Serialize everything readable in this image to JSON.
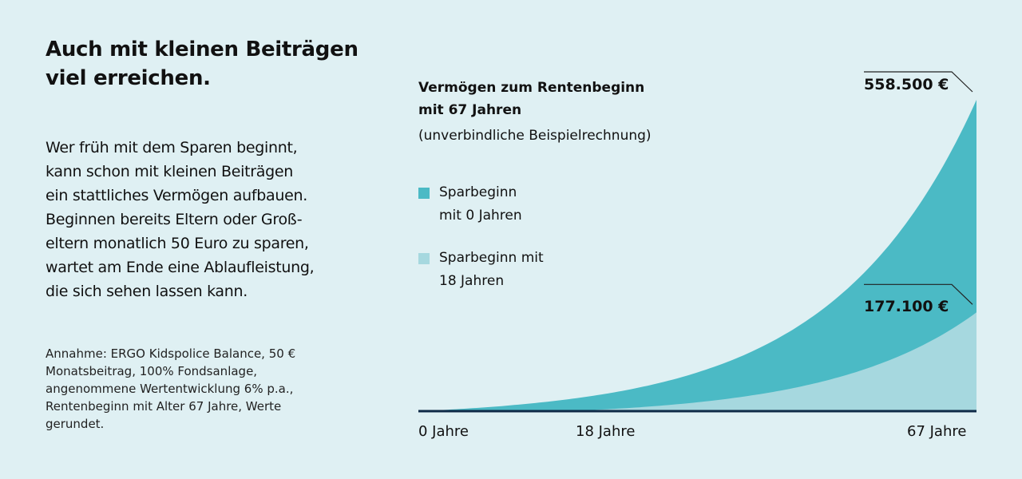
{
  "headline": "Auch mit kleinen Beiträgen viel erreichen.",
  "body_lines": [
    "Wer früh mit dem Sparen beginnt,",
    "kann schon mit kleinen Beiträgen",
    "ein stattliches Vermögen aufbauen.",
    "Beginnen bereits Eltern oder Groß-",
    "eltern monatlich 50 Euro zu sparen,",
    "wartet am Ende eine Ablaufleistung,",
    "die sich sehen lassen kann."
  ],
  "note_lines": [
    "Annahme: ERGO Kidspolice Balance, 50 €",
    "Monatsbeitrag, 100% Fondsanlage,",
    "angenommene Wertentwicklung 6% p.a.,",
    "Rentenbeginn mit Alter 67 Jahre, Werte",
    "gerundet."
  ],
  "colors": {
    "background": "#dff0f3",
    "series_0": "#4bbac5",
    "series_18": "#a6d8df",
    "axis": "#0f2a47"
  },
  "chart_data": {
    "type": "area",
    "title_lines": [
      "Vermögen zum Rentenbeginn",
      "mit 67 Jahren"
    ],
    "subtitle": "(unverbindliche Beispielrechnung)",
    "x_tick_labels": [
      "0 Jahre",
      "18 Jahre",
      "67 Jahre"
    ],
    "x_ticks": [
      0,
      18,
      67
    ],
    "xlim": [
      0,
      67
    ],
    "ylim": [
      0,
      558500
    ],
    "grid": false,
    "legend_position": "top-left",
    "series": [
      {
        "name_lines": [
          "Sparbeginn",
          "mit 0 Jahren"
        ],
        "start_age": 0,
        "end_age": 67,
        "final_value": 558500,
        "final_label": "558.500 €",
        "color": "#4bbac5"
      },
      {
        "name_lines": [
          "Sparbeginn mit",
          "18 Jahren"
        ],
        "start_age": 18,
        "end_age": 67,
        "final_value": 177100,
        "final_label": "177.100 €",
        "color": "#a6d8df"
      }
    ]
  }
}
